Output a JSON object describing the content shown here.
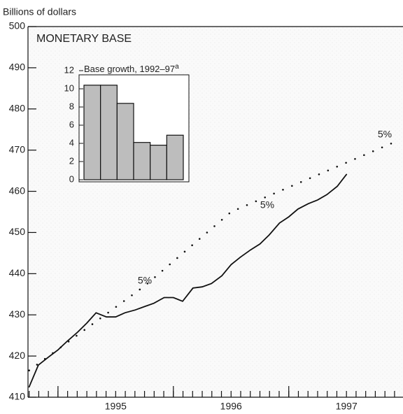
{
  "chart_data": [
    {
      "type": "line",
      "y_label": "Billions of dollars",
      "title": "MONETARY BASE",
      "xlim": [
        1994.74,
        1997.99
      ],
      "xticks": [
        {
          "value": 1995,
          "label": "1995"
        },
        {
          "value": 1996,
          "label": "1996"
        },
        {
          "value": 1997,
          "label": "1997"
        }
      ],
      "ylim": [
        410,
        500
      ],
      "yticks": [
        410,
        420,
        430,
        440,
        450,
        460,
        470,
        480,
        490,
        500
      ],
      "series": [
        {
          "style": "solid",
          "color": "#111",
          "x": [
            1994.75,
            1994.83,
            1994.92,
            1995,
            1995.08,
            1995.17,
            1995.25,
            1995.33,
            1995.42,
            1995.5,
            1995.58,
            1995.67,
            1995.75,
            1995.83,
            1995.92,
            1996,
            1996.08,
            1996.17,
            1996.25,
            1996.33,
            1996.42,
            1996.5,
            1996.58,
            1996.67,
            1996.75,
            1996.83,
            1996.92,
            1997,
            1997.08,
            1997.17,
            1997.25,
            1997.33,
            1997.42,
            1997.5
          ],
          "values": [
            412.5,
            417.8,
            419.8,
            421.5,
            423.6,
            425.8,
            428,
            430.5,
            429.5,
            429.5,
            430.5,
            431.2,
            432,
            432.8,
            434.2,
            434.2,
            433.3,
            436.5,
            436.8,
            437.6,
            439.5,
            442.2,
            444,
            445.8,
            447.2,
            449.4,
            452.3,
            453.8,
            455.7,
            457,
            457.9,
            459.2,
            461.2,
            464.1
          ]
        },
        {
          "style": "dotted",
          "color": "#111",
          "x": [
            1994.75,
            1995.75,
            1996.5,
            1997.92
          ],
          "values": [
            416.5,
            437,
            455,
            472
          ]
        }
      ],
      "annotations": [
        "5%",
        "5%",
        "5%"
      ]
    },
    {
      "type": "bar",
      "title": "Base growth, 1992–97",
      "title_note": "a",
      "values": [
        10.4,
        10.4,
        8.4,
        4.1,
        3.8,
        4.9
      ],
      "color": "#bdbdbd",
      "ylim": [
        0,
        12
      ],
      "yticks": [
        0,
        2,
        4,
        6,
        8,
        10,
        12
      ]
    }
  ]
}
